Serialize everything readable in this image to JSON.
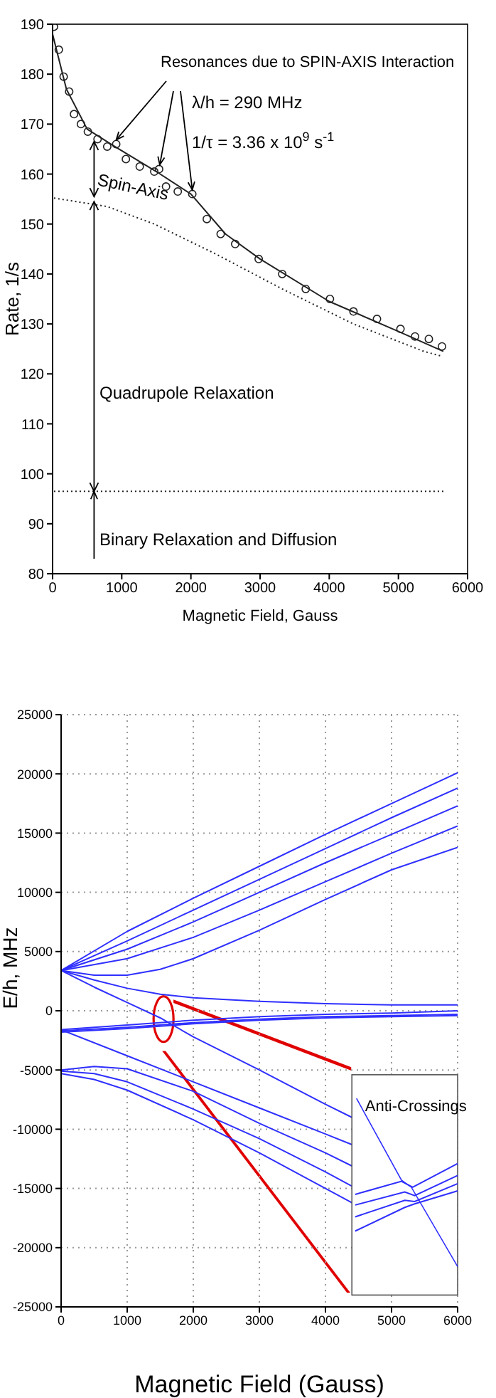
{
  "chart_data": [
    {
      "type": "line",
      "xlabel": "Magnetic Field, Gauss",
      "ylabel": "Rate, 1/s",
      "xlim": [
        0,
        6000
      ],
      "ylim": [
        80,
        190
      ],
      "xticks": [
        0,
        1000,
        2000,
        3000,
        4000,
        5000,
        6000
      ],
      "yticks": [
        80,
        90,
        100,
        110,
        120,
        130,
        140,
        150,
        160,
        170,
        180,
        190
      ],
      "annotations": [
        {
          "text": "Resonances due to SPIN-AXIS Interaction",
          "x": 1550,
          "y": 161
        },
        {
          "text": "λ/h = 290 MHz",
          "x": 2020,
          "y": 156
        },
        "1/τ = 3.36 x 10$^{9}$ s$^{-1}$",
        "Spin-Axis",
        "Quadrupole Relaxation",
        {
          "text": "Binary Relaxation and Diffusion",
          "x": 600,
          "y": 96.5
        }
      ],
      "series": [
        {
          "type": "scatter",
          "marker": "circle",
          "color": "#222222",
          "x": [
            20,
            90,
            160,
            240,
            310,
            410,
            510,
            650,
            790,
            920,
            1060,
            1260,
            1470,
            1540,
            1640,
            1810,
            2020,
            2230,
            2430,
            2640,
            2980,
            3320,
            3660,
            4010,
            4350,
            4690,
            5030,
            5240,
            5440,
            5630
          ],
          "values": [
            189.5,
            184.9,
            179.5,
            176.5,
            172,
            170,
            168.5,
            167,
            165.5,
            166,
            163,
            161.5,
            160.5,
            161,
            157.5,
            156.5,
            156,
            151,
            148,
            146,
            143,
            140,
            137,
            135,
            132.5,
            131,
            129,
            127.5,
            127,
            125.5
          ]
        },
        {
          "marker": "none",
          "line_style": "solid",
          "color": "#222222",
          "x": [
            0,
            200,
            500,
            900,
            1500,
            2000,
            2500,
            3000,
            4000,
            5000,
            5650
          ],
          "values": [
            188,
            177,
            169,
            165.5,
            160.5,
            156,
            148,
            143,
            134.5,
            128.5,
            124.5
          ]
        },
        {
          "marker": "none",
          "line_style": "dotted",
          "color": "#222222",
          "x": [
            20,
            790,
            1470,
            2360,
            3320,
            4350,
            5370,
            5640
          ],
          "values": [
            155.2,
            153.5,
            150,
            144,
            137,
            130,
            124.5,
            123.5
          ]
        },
        {
          "marker": "none",
          "line_style": "dotted",
          "color": "#222222",
          "x": [
            20,
            5650
          ],
          "values": [
            96.5,
            96.5
          ]
        }
      ]
    },
    {
      "type": "line",
      "xlabel": "Magnetic Field (Gauss)",
      "ylabel": "E/h, MHz",
      "xlim": [
        0,
        6000
      ],
      "ylim": [
        -25000,
        25000
      ],
      "xticks": [
        0,
        1000,
        2000,
        3000,
        4000,
        5000,
        6000
      ],
      "yticks": [
        -25000,
        -20000,
        -15000,
        -10000,
        -5000,
        0,
        5000,
        10000,
        15000,
        20000,
        25000
      ],
      "grid": true,
      "marker": "none",
      "line_style": "solid",
      "annotations": [
        "Anti-Crossings"
      ],
      "series": [
        {
          "color": "#2f2fff",
          "x": [
            0,
            1000,
            2000,
            3000,
            4000,
            5000,
            6000
          ],
          "values": [
            3400,
            6700,
            9500,
            12200,
            14900,
            17500,
            20100
          ]
        },
        {
          "color": "#2f2fff",
          "x": [
            0,
            1000,
            2000,
            3000,
            4000,
            5000,
            6000
          ],
          "values": [
            3400,
            5900,
            8500,
            11100,
            13700,
            16300,
            18800
          ]
        },
        {
          "color": "#2f2fff",
          "x": [
            0,
            1000,
            2000,
            3000,
            4000,
            5000,
            6000
          ],
          "values": [
            3400,
            5200,
            7500,
            10000,
            12500,
            14900,
            17300
          ]
        },
        {
          "color": "#2f2fff",
          "x": [
            0,
            1000,
            2000,
            3000,
            4000,
            5000,
            6000
          ],
          "values": [
            3400,
            4400,
            6200,
            8500,
            10900,
            13300,
            15600
          ]
        },
        {
          "color": "#2f2fff",
          "x": [
            0,
            500,
            1000,
            1500,
            2000,
            3000,
            4000,
            5000,
            6000
          ],
          "values": [
            3400,
            3000,
            3000,
            3500,
            4400,
            6800,
            9400,
            11900,
            13800
          ]
        },
        {
          "color": "#2f2fff",
          "x": [
            0,
            500,
            1000,
            1500,
            2000,
            3000,
            4000,
            5000,
            6000
          ],
          "values": [
            3400,
            2600,
            1900,
            1400,
            1100,
            800,
            600,
            500,
            500
          ]
        },
        {
          "color": "#2f2fff",
          "x": [
            0,
            500,
            1000,
            1500,
            2000,
            3000,
            4000,
            4400
          ],
          "values": [
            3400,
            2000,
            700,
            -600,
            -2200,
            -5000,
            -7900,
            -9000
          ]
        },
        {
          "color": "#2f2fff",
          "x": [
            0,
            1000,
            2000,
            3000,
            4000,
            4400
          ],
          "values": [
            -1600,
            -3800,
            -6000,
            -8200,
            -10400,
            -11300
          ]
        },
        {
          "color": "#2f2fff",
          "x": [
            0,
            500,
            1000,
            2000,
            3000,
            4000,
            4400
          ],
          "values": [
            -5000,
            -4700,
            -4900,
            -6800,
            -9500,
            -12000,
            -13100
          ]
        },
        {
          "color": "#2f2fff",
          "x": [
            0,
            500,
            1000,
            2000,
            3000,
            4000,
            4400
          ],
          "values": [
            -5100,
            -5300,
            -6000,
            -8300,
            -10800,
            -13600,
            -14800
          ]
        },
        {
          "color": "#2f2fff",
          "x": [
            0,
            500,
            1000,
            2000,
            3000,
            4000,
            4400
          ],
          "values": [
            -5300,
            -5800,
            -6700,
            -9200,
            -12000,
            -15000,
            -16200
          ]
        },
        {
          "color": "#2f2fff",
          "x": [
            0,
            1000,
            2000,
            3000,
            4000,
            5000,
            6000
          ],
          "values": [
            -1600,
            -1200,
            -800,
            -500,
            -300,
            -200,
            0
          ]
        },
        {
          "color": "#2f2fff",
          "x": [
            0,
            1000,
            2000,
            3000,
            4000,
            5000,
            6000
          ],
          "values": [
            -1700,
            -1400,
            -1000,
            -700,
            -500,
            -400,
            -300
          ]
        },
        {
          "color": "#2f2fff",
          "x": [
            0,
            1000,
            2000,
            3000,
            4000,
            5000,
            6000
          ],
          "values": [
            -1800,
            -1500,
            -1100,
            -800,
            -600,
            -500,
            -400
          ]
        }
      ]
    }
  ]
}
